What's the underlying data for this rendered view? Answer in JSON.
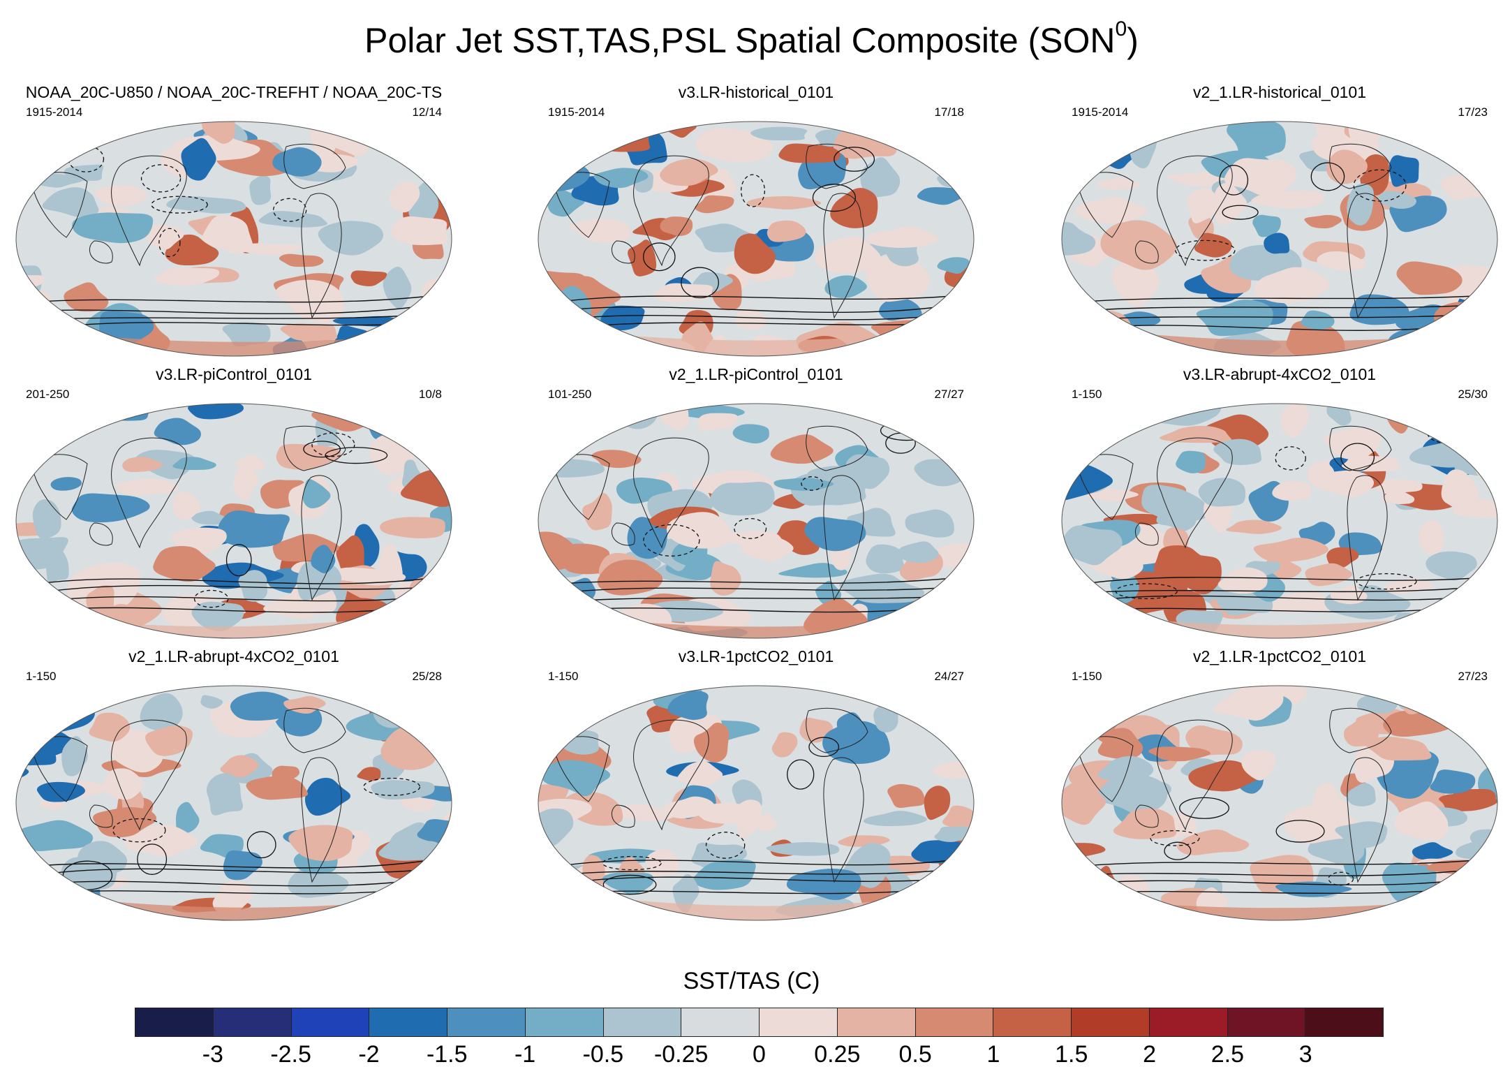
{
  "title": {
    "text": "Polar Jet SST,TAS,PSL Spatial Composite (SON",
    "superscript": "0",
    "close": ")"
  },
  "colorbar": {
    "title": "SST/TAS (C)",
    "colors": [
      "#191d4a",
      "#262e78",
      "#2042b8",
      "#1f6cb0",
      "#4d8fbd",
      "#74aec6",
      "#abc4cf",
      "#d8dcdf",
      "#ecdbd7",
      "#e4b3a3",
      "#d68a72",
      "#c56245",
      "#b13c27",
      "#9b1b27",
      "#6e1424",
      "#4c0e18"
    ],
    "ticks": [
      "-3",
      "-2.5",
      "-2",
      "-1.5",
      "-1",
      "-0.5",
      "-0.25",
      "0",
      "0.25",
      "0.5",
      "1",
      "1.5",
      "2",
      "2.5",
      "3"
    ]
  },
  "chart_data": [
    {
      "type": "heatmap",
      "title": "NOAA_20C-U850 / NOAA_20C-TREFHT / NOAA_20C-TS",
      "period": "1915-2014",
      "count": "12/14"
    },
    {
      "type": "heatmap",
      "title": "v3.LR-historical_0101",
      "period": "1915-2014",
      "count": "17/18"
    },
    {
      "type": "heatmap",
      "title": "v2_1.LR-historical_0101",
      "period": "1915-2014",
      "count": "17/23"
    },
    {
      "type": "heatmap",
      "title": "v3.LR-piControl_0101",
      "period": "201-250",
      "count": "10/8"
    },
    {
      "type": "heatmap",
      "title": "v2_1.LR-piControl_0101",
      "period": "101-250",
      "count": "27/27"
    },
    {
      "type": "heatmap",
      "title": "v3.LR-abrupt-4xCO2_0101",
      "period": "1-150",
      "count": "25/30"
    },
    {
      "type": "heatmap",
      "title": "v2_1.LR-abrupt-4xCO2_0101",
      "period": "1-150",
      "count": "25/28"
    },
    {
      "type": "heatmap",
      "title": "v3.LR-1pctCO2_0101",
      "period": "1-150",
      "count": "24/27"
    },
    {
      "type": "heatmap",
      "title": "v2_1.LR-1pctCO2_0101",
      "period": "1-150",
      "count": "27/23"
    }
  ]
}
